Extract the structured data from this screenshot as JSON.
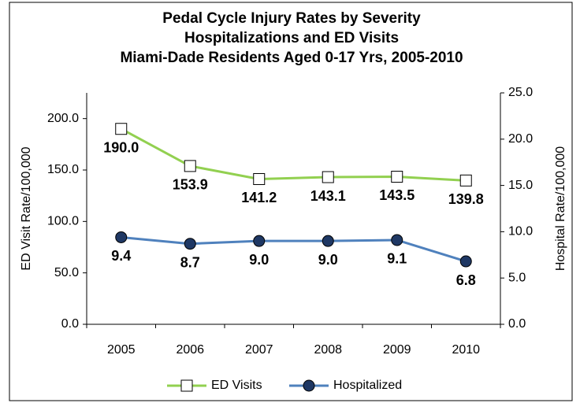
{
  "chart_data": {
    "type": "line",
    "title": [
      "Pedal Cycle Injury Rates by Severity",
      "Hospitalizations and ED Visits",
      "Miami-Dade Residents Aged 0-17 Yrs, 2005-2010"
    ],
    "categories": [
      "2005",
      "2006",
      "2007",
      "2008",
      "2009",
      "2010"
    ],
    "ylabel": "ED Visit Rate/100,000",
    "y2label": "Hospital Rate/100,000",
    "ylim": [
      0,
      225
    ],
    "yticks": [
      {
        "value": 0,
        "label": "0.0"
      },
      {
        "value": 50,
        "label": "50.0"
      },
      {
        "value": 100,
        "label": "100.0"
      },
      {
        "value": 150,
        "label": "150.0"
      },
      {
        "value": 200,
        "label": "200.0"
      }
    ],
    "y2lim": [
      0,
      25
    ],
    "y2ticks": [
      {
        "value": 0,
        "label": "0.0"
      },
      {
        "value": 5,
        "label": "5.0"
      },
      {
        "value": 10,
        "label": "10.0"
      },
      {
        "value": 15,
        "label": "15.0"
      },
      {
        "value": 20,
        "label": "20.0"
      },
      {
        "value": 25,
        "label": "25.0"
      }
    ],
    "legend": "bottom",
    "series": [
      {
        "name": "ED Visits",
        "color": "#92d050",
        "marker_color": "#ffffff",
        "marker": "square",
        "values": [
          190.0,
          153.9,
          141.2,
          143.1,
          143.5,
          139.8
        ],
        "value_labels": [
          "190.0",
          "153.9",
          "141.2",
          "143.1",
          "143.5",
          "139.8"
        ]
      },
      {
        "name": "Hospitalized",
        "color": "#4f81bd",
        "marker_color": "#1f3864",
        "marker": "circle",
        "axis": "y2",
        "values": [
          9.4,
          8.7,
          9.0,
          9.0,
          9.1,
          6.8
        ],
        "value_labels": [
          "9.4",
          "8.7",
          "9.0",
          "9.0",
          "9.1",
          "6.8"
        ]
      }
    ]
  }
}
